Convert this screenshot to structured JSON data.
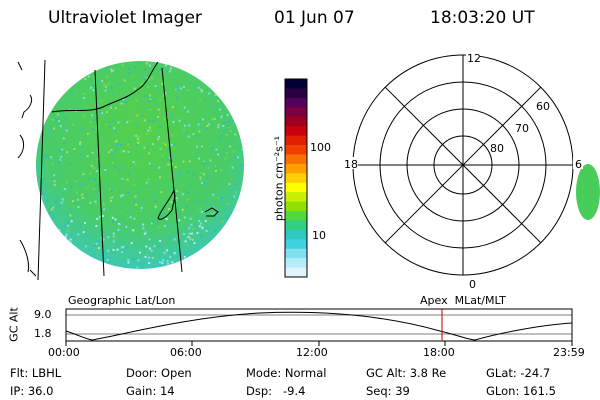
{
  "header": {
    "title": "Ultraviolet Imager",
    "date": "01 Jun 07",
    "time": "18:03:20 UT"
  },
  "colorbar": {
    "unit_label": "photon cm⁻²s⁻¹",
    "ticks": [
      "100",
      "10"
    ],
    "colors": [
      "#000033",
      "#2a0040",
      "#55005a",
      "#7a0040",
      "#a00020",
      "#c80010",
      "#e02000",
      "#f04000",
      "#f87000",
      "#ffa000",
      "#ffd000",
      "#ffff00",
      "#c8f000",
      "#90e000",
      "#50d840",
      "#30d080",
      "#30c8c0",
      "#40d0e0",
      "#80e0f0",
      "#b8ecf8",
      "#e0f4fa"
    ]
  },
  "left_plot": {
    "caption": "Geographic Lat/Lon"
  },
  "right_plot": {
    "caption": "Apex  MLat/MLT",
    "mlt_labels": {
      "top": "12",
      "left": "18",
      "right": "6",
      "bottom": "0"
    },
    "lat_labels": [
      "60",
      "70",
      "80"
    ]
  },
  "altitude_strip": {
    "ylabel": "GC Alt",
    "yticks": [
      "9.0",
      "1.8"
    ],
    "xticks": [
      "00:00",
      "06:00",
      "12:00",
      "18:00",
      "23:59"
    ]
  },
  "info": {
    "row1": [
      {
        "k": "Flt:",
        "v": "LBHL"
      },
      {
        "k": "Door:",
        "v": "Open"
      },
      {
        "k": "Mode:",
        "v": "Normal"
      },
      {
        "k": "GC Alt:",
        "v": "3.8 Re"
      },
      {
        "k": "GLat:",
        "v": "-24.7"
      }
    ],
    "row2": [
      {
        "k": "IP:",
        "v": "36.0"
      },
      {
        "k": "Gain:",
        "v": "14"
      },
      {
        "k": "Dsp:",
        "v": "  -9.4"
      },
      {
        "k": "Seq:",
        "v": "39"
      },
      {
        "k": "GLon:",
        "v": "161.5"
      }
    ]
  }
}
